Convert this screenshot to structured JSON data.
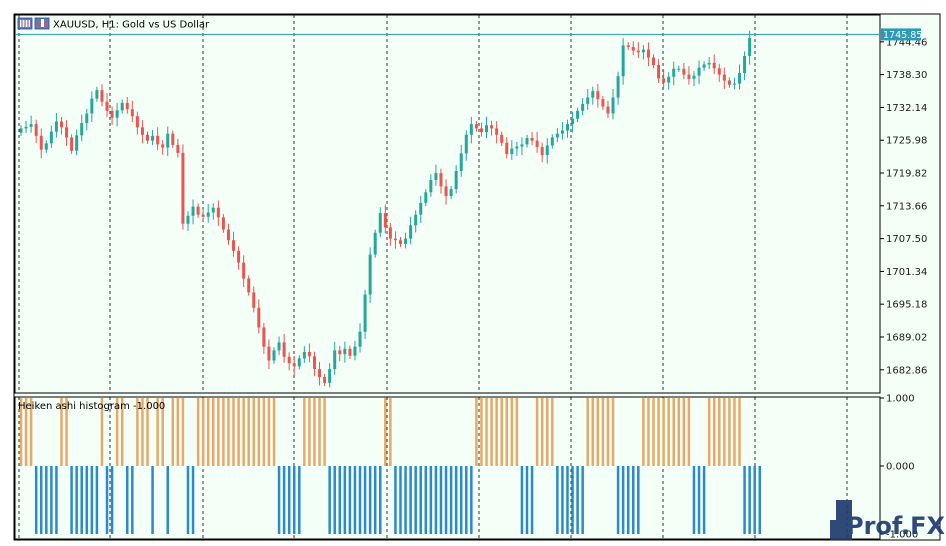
{
  "chart_title": "XAUUSD, H1:  Gold vs US Dollar",
  "indicator_title": "Heiken ashi histogram -1.000",
  "current_price": "1745.85",
  "watermark": "Prof.FX",
  "colors": {
    "background": "#f4fff8",
    "bull": "#26a69a",
    "bear": "#ef5350",
    "price_line": "#2a9ab8",
    "hist_up": "#e8a868",
    "hist_down": "#2a8acb",
    "frame": "#000000"
  },
  "chart_data": [
    {
      "type": "candlestick",
      "title": "XAUUSD, H1:  Gold vs US Dollar",
      "yaxis_ticks": [
        "1744.46",
        "1738.30",
        "1732.14",
        "1725.98",
        "1719.82",
        "1713.66",
        "1707.50",
        "1701.34",
        "1695.18",
        "1689.02",
        "1682.86"
      ],
      "ylim": [
        1678.5,
        1749.5
      ],
      "last_price": 1745.85,
      "grid": "vertical dashed separators",
      "series": [
        {
          "values": [
            1728.2,
            1728.5,
            1729.0,
            1726.8,
            1724.2,
            1725.4,
            1727.6,
            1729.5,
            1728.4,
            1726.5,
            1724.0,
            1726.9,
            1729.2,
            1731.0,
            1733.8,
            1735.4,
            1733.2,
            1731.5,
            1730.2,
            1731.6,
            1733.0,
            1731.8,
            1730.5,
            1728.4,
            1727.0,
            1725.9,
            1726.8,
            1725.2,
            1724.6,
            1727.2,
            1725.1,
            1723.6,
            1710.3,
            1711.8,
            1713.5,
            1712.0,
            1711.6,
            1712.4,
            1713.3,
            1711.5,
            1709.2,
            1707.2,
            1705.2,
            1703.0,
            1700.0,
            1697.4,
            1694.5,
            1690.8,
            1687.2,
            1684.6,
            1686.5,
            1688.0,
            1685.3,
            1684.1,
            1683.5,
            1685.0,
            1686.2,
            1685.4,
            1683.0,
            1681.5,
            1680.4,
            1683.0,
            1686.5,
            1685.8,
            1686.8,
            1685.5,
            1687.2,
            1690.0,
            1697.0,
            1704.5,
            1708.6,
            1712.3,
            1709.6,
            1707.5,
            1707.2,
            1706.5,
            1707.5,
            1710.0,
            1712.0,
            1714.2,
            1716.2,
            1718.5,
            1719.8,
            1717.3,
            1715.5,
            1716.8,
            1720.2,
            1723.5,
            1727.0,
            1729.0,
            1728.2,
            1727.5,
            1728.8,
            1728.2,
            1727.0,
            1725.5,
            1723.4,
            1724.4,
            1724.8,
            1725.2,
            1726.4,
            1725.9,
            1724.7,
            1723.2,
            1725.0,
            1726.5,
            1727.2,
            1727.8,
            1729.0,
            1730.0,
            1731.5,
            1732.8,
            1734.0,
            1735.2,
            1733.7,
            1732.3,
            1731.0,
            1734.0,
            1738.0,
            1743.8,
            1743.5,
            1742.8,
            1742.5,
            1743.0,
            1741.5,
            1740.1,
            1737.6,
            1736.8,
            1737.9,
            1739.4,
            1739.4,
            1738.3,
            1737.5,
            1738.1,
            1739.6,
            1740.2,
            1740.5,
            1739.5,
            1738.3,
            1737.2,
            1736.4,
            1736.6,
            1738.6,
            1741.8,
            1745.2
          ]
        }
      ]
    },
    {
      "type": "bar",
      "title": "Heiken ashi histogram -1.000",
      "yaxis_ticks": [
        "1.000",
        "0.000",
        "-1.000"
      ],
      "ylim": [
        -1,
        1
      ],
      "series": [
        {
          "values": [
            1,
            1,
            1,
            -1,
            -1,
            -1,
            -1,
            -1,
            1,
            1,
            -1,
            -1,
            -1,
            -1,
            -1,
            -1,
            1,
            -1,
            -1,
            1,
            1,
            -1,
            -1,
            1,
            1,
            1,
            -1,
            1,
            1,
            -1,
            1,
            1,
            1,
            -1,
            -1,
            1,
            1,
            1,
            1,
            1,
            1,
            1,
            1,
            1,
            1,
            1,
            1,
            1,
            1,
            1,
            1,
            -1,
            -1,
            -1,
            -1,
            -1,
            1,
            1,
            1,
            1,
            1,
            -1,
            -1,
            -1,
            -1,
            -1,
            -1,
            -1,
            -1,
            -1,
            -1,
            -1,
            1,
            1,
            -1,
            -1,
            -1,
            -1,
            -1,
            -1,
            -1,
            -1,
            -1,
            -1,
            -1,
            -1,
            -1,
            -1,
            -1,
            -1,
            1,
            1,
            1,
            1,
            1,
            1,
            1,
            1,
            1,
            -1,
            -1,
            -1,
            1,
            1,
            1,
            1,
            -1,
            -1,
            -1,
            -1,
            -1,
            -1,
            1,
            1,
            1,
            1,
            1,
            1,
            -1,
            -1,
            -1,
            -1,
            -1,
            1,
            1,
            1,
            1,
            1,
            1,
            1,
            1,
            1,
            1,
            -1,
            -1,
            -1,
            1,
            1,
            1,
            1,
            1,
            1,
            1,
            -1,
            -1,
            -1,
            -1
          ]
        }
      ]
    }
  ]
}
